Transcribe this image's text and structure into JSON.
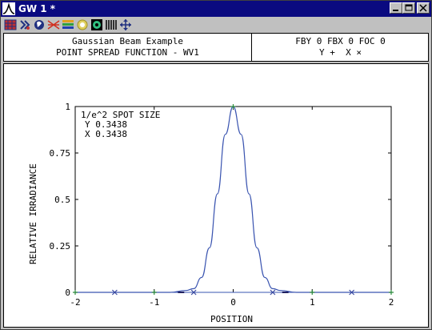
{
  "window": {
    "title": "GW 1 *",
    "controls": {
      "minimize": "minimize-icon",
      "restore": "restore-icon",
      "close": "close-icon"
    }
  },
  "toolbar": {
    "tools": [
      "grid-icon",
      "draw-icon",
      "hand-icon",
      "cross-rays-icon",
      "layers-icon",
      "lens-icon",
      "target-icon",
      "bars-icon",
      "move-arrows-icon"
    ]
  },
  "header": {
    "left_line1": "Gaussian Beam Example",
    "left_line2": "POINT SPREAD FUNCTION - WV1",
    "right_line1": "FBY 0 FBX 0 FOC 0",
    "right_line2": "Y +  X ×"
  },
  "annotation": {
    "line1": "1/e^2 SPOT SIZE",
    "line2": "Y 0.3438",
    "line3": "X 0.3438"
  },
  "chart_data": {
    "type": "line",
    "title": "",
    "xlabel": "POSITION",
    "ylabel": "RELATIVE IRRADIANCE",
    "xlim": [
      -2,
      2
    ],
    "ylim": [
      0,
      1
    ],
    "x_ticks": [
      -2,
      -1,
      0,
      1,
      2
    ],
    "x_tick_labels": [
      "-2",
      "-1",
      "0",
      "1",
      "2"
    ],
    "y_ticks": [
      0,
      0.25,
      0.5,
      0.75,
      1
    ],
    "y_tick_labels": [
      "0",
      "0.25",
      "0.5",
      "0.75",
      "1"
    ],
    "series": [
      {
        "marker": "+",
        "color": "#2a8a3a",
        "sample_x": [
          -2,
          -1,
          0,
          1,
          2
        ],
        "sample_y": [
          0,
          0,
          1,
          0,
          0
        ]
      },
      {
        "marker": "x",
        "color": "#3a4aa0",
        "sample_x": [
          -1.5,
          -0.5,
          0.5,
          1.5
        ],
        "sample_y": [
          0,
          0,
          0,
          0
        ]
      }
    ],
    "curve": {
      "color": "#3a54b0",
      "x": [
        -2,
        -1.5,
        -1,
        -0.8,
        -0.6,
        -0.5,
        -0.4,
        -0.3,
        -0.2,
        -0.1,
        0,
        0.1,
        0.2,
        0.3,
        0.4,
        0.5,
        0.6,
        0.8,
        1,
        1.5,
        2
      ],
      "y": [
        0,
        0,
        0,
        0,
        0.01,
        0.02,
        0.08,
        0.24,
        0.53,
        0.85,
        1,
        0.85,
        0.53,
        0.24,
        0.08,
        0.02,
        0.01,
        0,
        0,
        0,
        0
      ]
    },
    "spot_size_y": 0.3438,
    "spot_size_x": 0.3438
  }
}
